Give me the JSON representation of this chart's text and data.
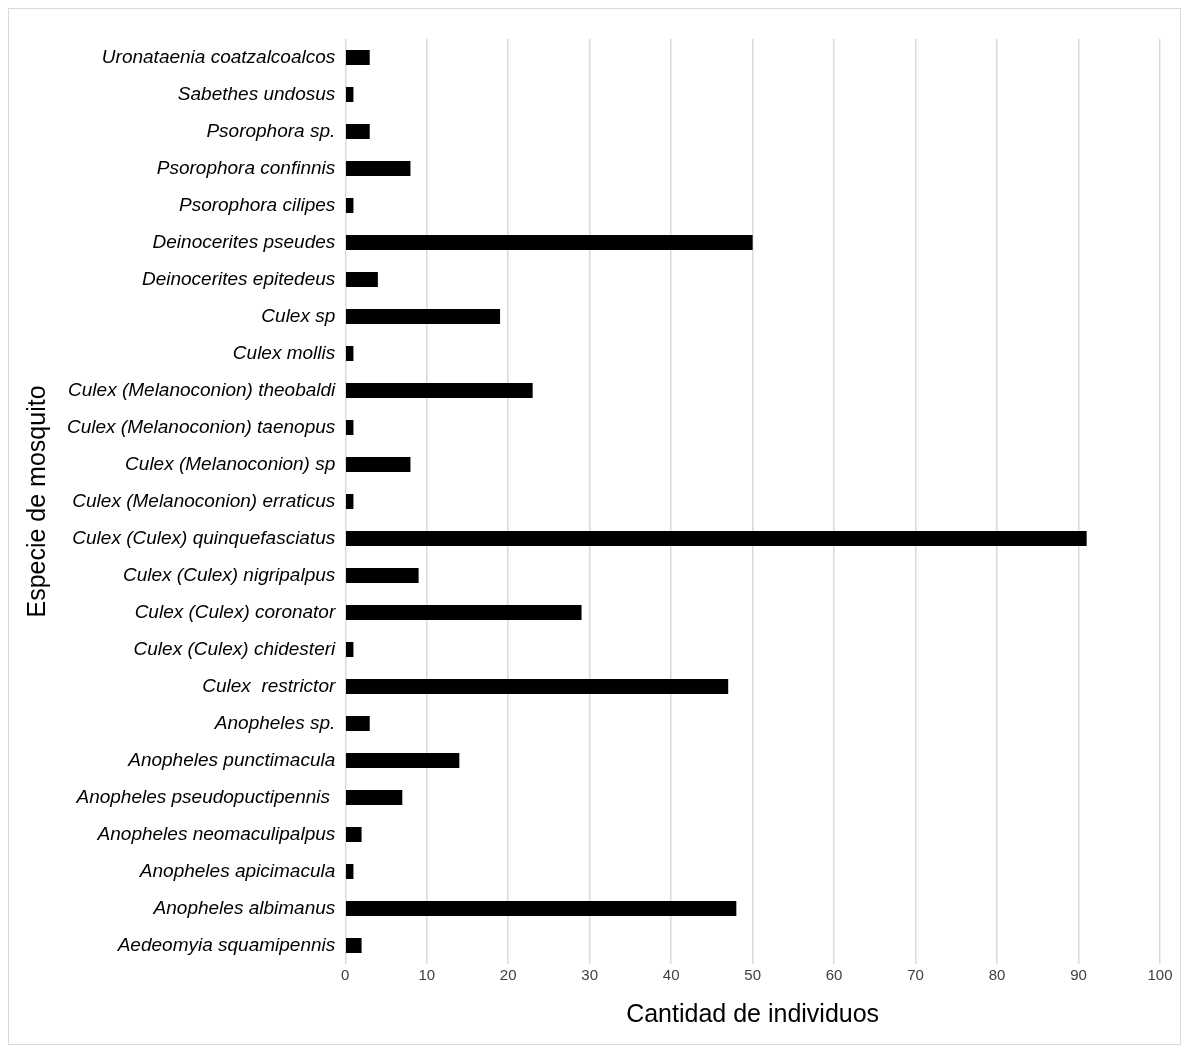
{
  "chart_data": {
    "type": "bar",
    "orientation": "horizontal",
    "xlabel": "Cantidad de individuos",
    "ylabel": "Especie de mosquito",
    "categories": [
      "Uronataenia coatzalcoalcos",
      "Sabethes undosus",
      "Psorophora sp.",
      "Psorophora confinnis",
      "Psorophora cilipes",
      "Deinocerites pseudes",
      "Deinocerites epitedeus",
      "Culex sp",
      "Culex mollis",
      "Culex (Melanoconion) theobaldi",
      "Culex (Melanoconion) taenopus",
      "Culex (Melanoconion) sp",
      "Culex (Melanoconion) erraticus",
      "Culex (Culex) quinquefasciatus",
      "Culex (Culex) nigripalpus",
      "Culex (Culex) coronator",
      "Culex (Culex) chidesteri",
      "Culex  restrictor",
      "Anopheles sp.",
      "Anopheles punctimacula",
      "Anopheles pseudopuctipennis ",
      "Anopheles neomaculipalpus",
      "Anopheles apicimacula",
      "Anopheles albimanus",
      "Aedeomyia squamipennis"
    ],
    "values": [
      3,
      1,
      3,
      8,
      1,
      50,
      4,
      19,
      1,
      23,
      1,
      8,
      1,
      91,
      9,
      29,
      1,
      47,
      3,
      14,
      7,
      2,
      1,
      48,
      2
    ],
    "color": "#000000",
    "xlim": [
      0,
      100
    ],
    "xticks": [
      0,
      10,
      20,
      30,
      40,
      50,
      60,
      70,
      80,
      90,
      100
    ],
    "grid": "x",
    "legend": false
  }
}
